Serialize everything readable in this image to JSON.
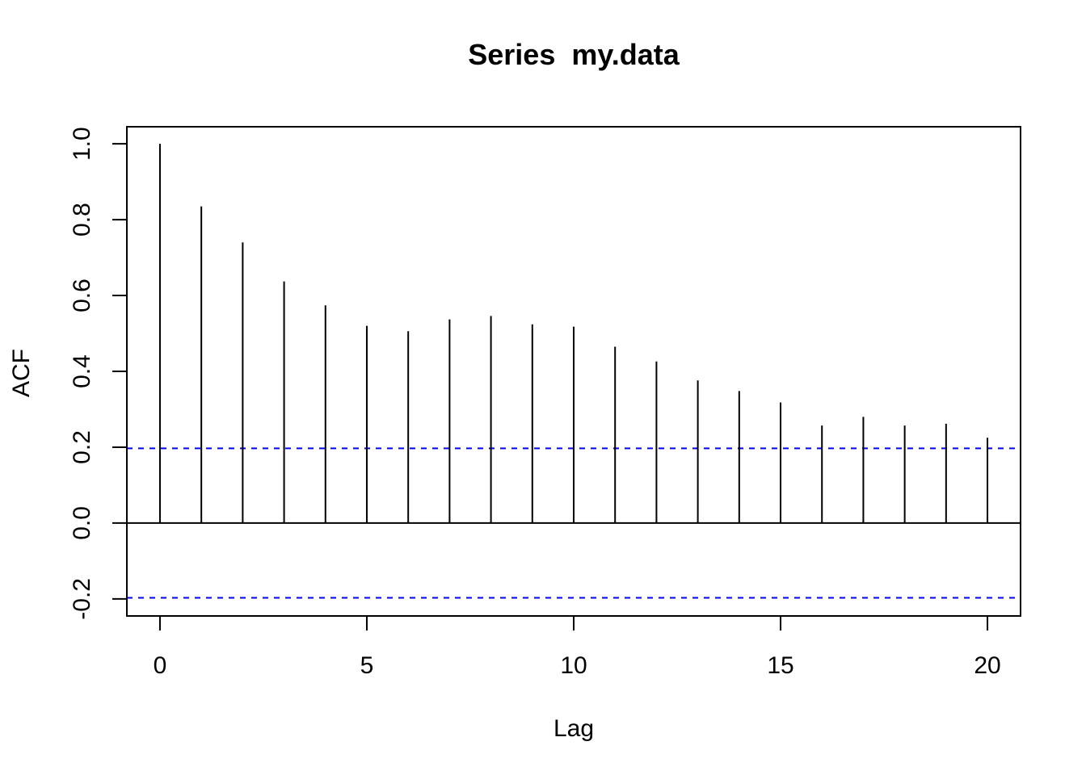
{
  "chart_data": {
    "type": "bar",
    "subtype": "acf-spikes",
    "title": "Series  my.data",
    "xlabel": "Lag",
    "ylabel": "ACF",
    "x": [
      0,
      1,
      2,
      3,
      4,
      5,
      6,
      7,
      8,
      9,
      10,
      11,
      12,
      13,
      14,
      15,
      16,
      17,
      18,
      19,
      20
    ],
    "values": [
      1.0,
      0.835,
      0.74,
      0.637,
      0.574,
      0.52,
      0.506,
      0.537,
      0.546,
      0.524,
      0.518,
      0.465,
      0.426,
      0.376,
      0.348,
      0.318,
      0.257,
      0.28,
      0.257,
      0.262,
      0.225
    ],
    "confidence_bound": 0.197,
    "xlim": [
      -0.8,
      20.8
    ],
    "ylim": [
      -0.245,
      1.045
    ],
    "x_ticks": [
      0,
      5,
      10,
      15,
      20
    ],
    "x_tick_labels": [
      "0",
      "5",
      "10",
      "15",
      "20"
    ],
    "y_ticks": [
      -0.2,
      0.0,
      0.2,
      0.4,
      0.6,
      0.8,
      1.0
    ],
    "y_tick_labels": [
      "-0.2",
      "0.0",
      "0.2",
      "0.4",
      "0.6",
      "0.8",
      "1.0"
    ],
    "grid": false,
    "colors": {
      "spikes": "#000000",
      "confidence_lines": "#0000ff",
      "zero_line": "#000000"
    }
  }
}
